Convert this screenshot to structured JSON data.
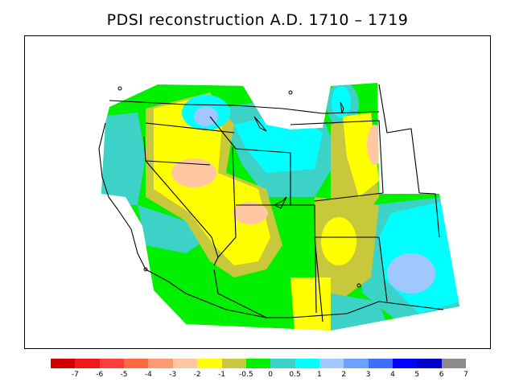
{
  "title": "PDSI reconstruction A.D. 1710 – 1719",
  "legend": {
    "colors": [
      "#d10000",
      "#f01818",
      "#ff3c3c",
      "#ff6a40",
      "#ff9a70",
      "#ffc8a0",
      "#ffff00",
      "#c8c83c",
      "#00f000",
      "#3cd2c8",
      "#00ffff",
      "#a0c8ff",
      "#6ea0ff",
      "#3c6eff",
      "#0000ff",
      "#0000c8",
      "#8c8c8c"
    ],
    "ticks": [
      "-7",
      "-6",
      "-5",
      "-4",
      "-3",
      "-2",
      "-1",
      "-0.5",
      "0",
      "0.5",
      "1",
      "2",
      "3",
      "4",
      "5",
      "6",
      "7"
    ]
  }
}
